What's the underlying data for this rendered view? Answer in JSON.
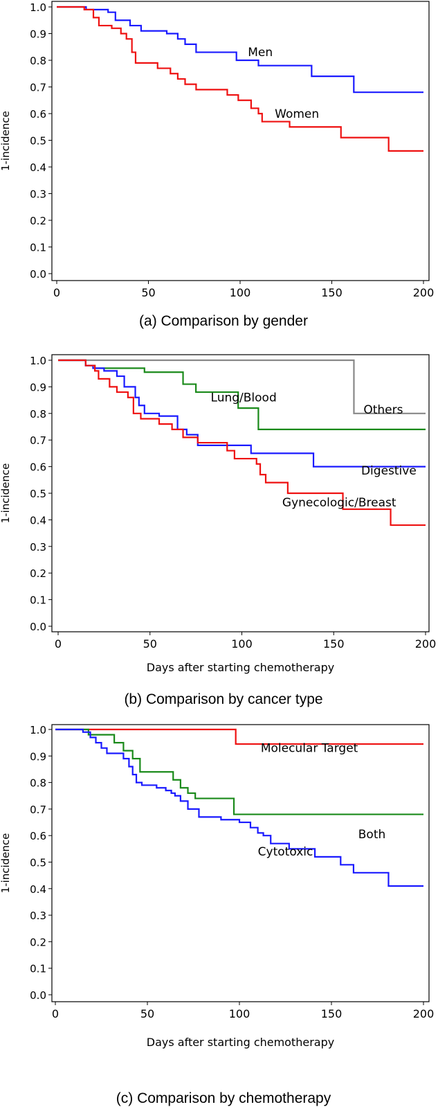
{
  "chart_data": [
    {
      "type": "line",
      "title": "(a) Comparison by gender",
      "xlabel": "",
      "ylabel": "1-incidence",
      "xlim": [
        0,
        200
      ],
      "ylim": [
        0.0,
        1.0
      ],
      "x_ticks": [
        "0",
        "50",
        "100",
        "150",
        "200"
      ],
      "y_ticks": [
        "0.0",
        "0.1",
        "0.2",
        "0.3",
        "0.4",
        "0.5",
        "0.6",
        "0.7",
        "0.8",
        "0.9",
        "1.0"
      ],
      "series": [
        {
          "name": "Men",
          "color": "#1a1aff",
          "x": [
            0,
            16,
            28,
            32,
            40,
            46,
            60,
            66,
            70,
            76,
            98,
            110,
            139,
            162,
            200
          ],
          "y": [
            1.0,
            0.99,
            0.98,
            0.95,
            0.93,
            0.91,
            0.9,
            0.88,
            0.86,
            0.83,
            0.8,
            0.78,
            0.74,
            0.68,
            0.68
          ]
        },
        {
          "name": "Women",
          "color": "#ee1111",
          "x": [
            0,
            15,
            20,
            23,
            30,
            35,
            38,
            41,
            43,
            55,
            62,
            66,
            70,
            76,
            93,
            99,
            106,
            110,
            112,
            127,
            155,
            181,
            200
          ],
          "y": [
            1.0,
            0.99,
            0.96,
            0.93,
            0.92,
            0.9,
            0.88,
            0.83,
            0.79,
            0.77,
            0.75,
            0.73,
            0.71,
            0.69,
            0.67,
            0.65,
            0.62,
            0.6,
            0.57,
            0.55,
            0.51,
            0.46,
            0.46
          ]
        }
      ],
      "annotations": [
        {
          "text": "Men",
          "x": 111,
          "y": 0.815
        },
        {
          "text": "Women",
          "x": 131,
          "y": 0.585
        }
      ]
    },
    {
      "type": "line",
      "title": "(b) Comparison by cancer type",
      "xlabel": "Days after starting chemotherapy",
      "ylabel": "1-incidence",
      "xlim": [
        0,
        200
      ],
      "ylim": [
        0.0,
        1.0
      ],
      "x_ticks": [
        "0",
        "50",
        "100",
        "150",
        "200"
      ],
      "y_ticks": [
        "0.0",
        "0.1",
        "0.2",
        "0.3",
        "0.4",
        "0.5",
        "0.6",
        "0.7",
        "0.8",
        "0.9",
        "1.0"
      ],
      "series": [
        {
          "name": "Others",
          "color": "#888888",
          "x": [
            0,
            161,
            200
          ],
          "y": [
            1.0,
            0.8,
            0.8
          ]
        },
        {
          "name": "Lung/Blood",
          "color": "#1a8a1a",
          "x": [
            0,
            15,
            20,
            47,
            68,
            75,
            98,
            109,
            200
          ],
          "y": [
            1.0,
            0.98,
            0.97,
            0.955,
            0.91,
            0.88,
            0.82,
            0.74,
            0.74
          ]
        },
        {
          "name": "Digestive",
          "color": "#1a1aff",
          "x": [
            0,
            15,
            19,
            25,
            32,
            36,
            42,
            44,
            47,
            55,
            65,
            70,
            76,
            90,
            105,
            139,
            200
          ],
          "y": [
            1.0,
            0.98,
            0.97,
            0.96,
            0.94,
            0.9,
            0.86,
            0.83,
            0.8,
            0.79,
            0.74,
            0.72,
            0.68,
            0.68,
            0.65,
            0.6,
            0.6
          ]
        },
        {
          "name": "Gynecologic/Breast",
          "color": "#ee1111",
          "x": [
            0,
            15,
            20,
            22,
            28,
            32,
            38,
            41,
            45,
            55,
            62,
            68,
            76,
            92,
            96,
            108,
            110,
            113,
            125,
            155,
            181,
            200
          ],
          "y": [
            1.0,
            0.98,
            0.96,
            0.93,
            0.9,
            0.88,
            0.86,
            0.8,
            0.78,
            0.76,
            0.74,
            0.71,
            0.69,
            0.66,
            0.63,
            0.61,
            0.57,
            0.54,
            0.5,
            0.44,
            0.38,
            0.38
          ]
        }
      ],
      "annotations": [
        {
          "text": "Lung/Blood",
          "x": 101,
          "y": 0.845
        },
        {
          "text": "Others",
          "x": 177,
          "y": 0.8
        },
        {
          "text": "Digestive",
          "x": 180,
          "y": 0.57
        },
        {
          "text": "Gynecologic/Breast",
          "x": 153,
          "y": 0.45
        }
      ]
    },
    {
      "type": "line",
      "title": "(c) Comparison by chemotherapy",
      "xlabel": "Days after starting chemotherapy",
      "ylabel": "1-incidence",
      "xlim": [
        0,
        200
      ],
      "ylim": [
        0.0,
        1.0
      ],
      "x_ticks": [
        "0",
        "50",
        "100",
        "150",
        "200"
      ],
      "y_ticks": [
        "0.0",
        "0.1",
        "0.2",
        "0.3",
        "0.4",
        "0.5",
        "0.6",
        "0.7",
        "0.8",
        "0.9",
        "1.0"
      ],
      "series": [
        {
          "name": "Molecular Target",
          "color": "#ee1111",
          "x": [
            0,
            98,
            200
          ],
          "y": [
            1.0,
            0.945,
            0.945
          ]
        },
        {
          "name": "Both",
          "color": "#1a8a1a",
          "x": [
            0,
            18,
            32,
            37,
            42,
            46,
            64,
            68,
            72,
            76,
            97,
            200
          ],
          "y": [
            1.0,
            0.98,
            0.95,
            0.92,
            0.89,
            0.84,
            0.81,
            0.78,
            0.76,
            0.74,
            0.68,
            0.68
          ]
        },
        {
          "name": "Cytotoxic",
          "color": "#1a1aff",
          "x": [
            0,
            15,
            19,
            22,
            25,
            28,
            37,
            40,
            42,
            44,
            47,
            55,
            60,
            63,
            65,
            68,
            72,
            78,
            90,
            100,
            106,
            110,
            113,
            117,
            127,
            141,
            155,
            162,
            181,
            200
          ],
          "y": [
            1.0,
            0.99,
            0.97,
            0.95,
            0.93,
            0.91,
            0.89,
            0.86,
            0.83,
            0.8,
            0.79,
            0.78,
            0.77,
            0.76,
            0.75,
            0.73,
            0.7,
            0.67,
            0.66,
            0.65,
            0.63,
            0.61,
            0.6,
            0.57,
            0.55,
            0.52,
            0.49,
            0.46,
            0.41,
            0.41
          ]
        }
      ],
      "annotations": [
        {
          "text": "Molecular Target",
          "x": 138,
          "y": 0.915
        },
        {
          "text": "Both",
          "x": 172,
          "y": 0.59
        },
        {
          "text": "Cytotoxic",
          "x": 125,
          "y": 0.525
        }
      ]
    }
  ]
}
